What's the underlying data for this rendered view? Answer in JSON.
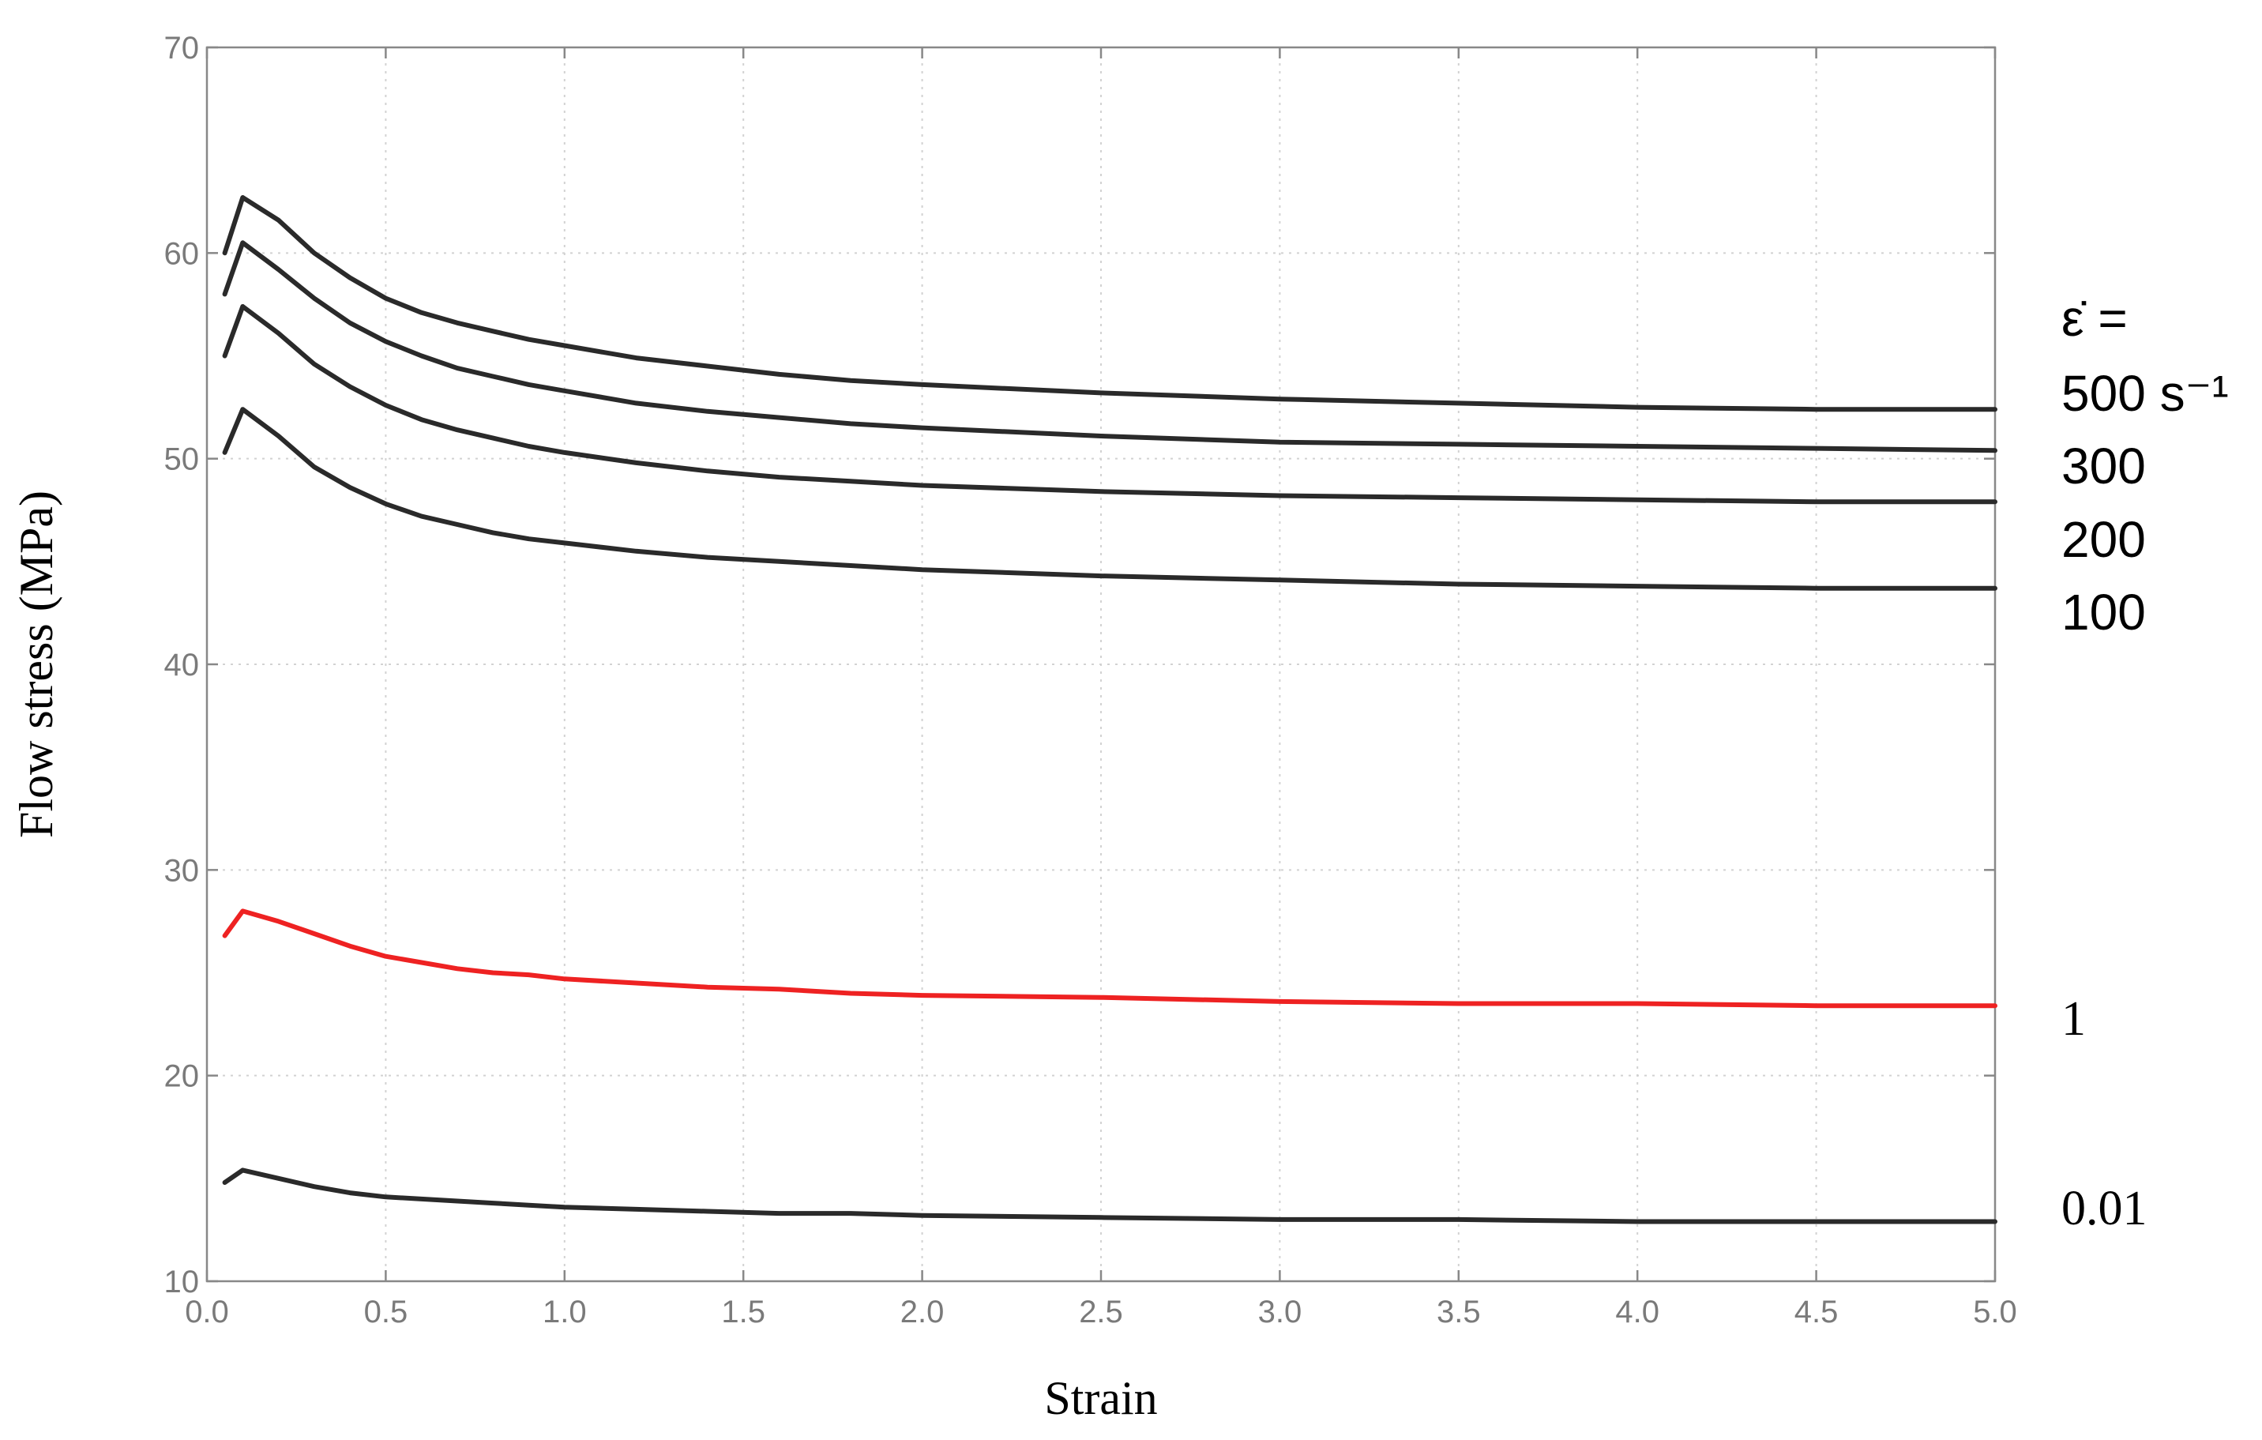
{
  "chart_data": {
    "type": "line",
    "title": "",
    "xlabel": "Strain",
    "ylabel": "Flow stress (MPa)",
    "xlim": [
      0.0,
      5.0
    ],
    "ylim": [
      10,
      70
    ],
    "x_ticks": [
      "0.0",
      "0.5",
      "1.0",
      "1.5",
      "2.0",
      "2.5",
      "3.0",
      "3.5",
      "4.0",
      "4.5",
      "5.0"
    ],
    "y_ticks": [
      "10",
      "20",
      "30",
      "40",
      "50",
      "60",
      "70"
    ],
    "grid": true,
    "legend_title": "ε̇ =",
    "x": [
      0.05,
      0.1,
      0.2,
      0.3,
      0.4,
      0.5,
      0.6,
      0.7,
      0.8,
      0.9,
      1.0,
      1.2,
      1.4,
      1.6,
      1.8,
      2.0,
      2.5,
      3.0,
      3.5,
      4.0,
      4.5,
      5.0
    ],
    "series": [
      {
        "name": "500 s⁻¹",
        "color": "#2a2a2a",
        "values": [
          60.0,
          62.7,
          61.6,
          60.0,
          58.8,
          57.8,
          57.1,
          56.6,
          56.2,
          55.8,
          55.5,
          54.9,
          54.5,
          54.1,
          53.8,
          53.6,
          53.2,
          52.9,
          52.7,
          52.5,
          52.4,
          52.4
        ]
      },
      {
        "name": "300",
        "color": "#2a2a2a",
        "values": [
          58.0,
          60.5,
          59.2,
          57.8,
          56.6,
          55.7,
          55.0,
          54.4,
          54.0,
          53.6,
          53.3,
          52.7,
          52.3,
          52.0,
          51.7,
          51.5,
          51.1,
          50.8,
          50.7,
          50.6,
          50.5,
          50.4
        ]
      },
      {
        "name": "200",
        "color": "#2a2a2a",
        "values": [
          55.0,
          57.4,
          56.1,
          54.6,
          53.5,
          52.6,
          51.9,
          51.4,
          51.0,
          50.6,
          50.3,
          49.8,
          49.4,
          49.1,
          48.9,
          48.7,
          48.4,
          48.2,
          48.1,
          48.0,
          47.9,
          47.9
        ]
      },
      {
        "name": "100",
        "color": "#2a2a2a",
        "values": [
          50.3,
          52.4,
          51.1,
          49.6,
          48.6,
          47.8,
          47.2,
          46.8,
          46.4,
          46.1,
          45.9,
          45.5,
          45.2,
          45.0,
          44.8,
          44.6,
          44.3,
          44.1,
          43.9,
          43.8,
          43.7,
          43.7
        ]
      },
      {
        "name": "1",
        "color": "#ee2222",
        "values": [
          26.8,
          28.0,
          27.5,
          26.9,
          26.3,
          25.8,
          25.5,
          25.2,
          25.0,
          24.9,
          24.7,
          24.5,
          24.3,
          24.2,
          24.0,
          23.9,
          23.8,
          23.6,
          23.5,
          23.5,
          23.4,
          23.4
        ]
      },
      {
        "name": "0.01",
        "color": "#2a2a2a",
        "values": [
          14.8,
          15.4,
          15.0,
          14.6,
          14.3,
          14.1,
          14.0,
          13.9,
          13.8,
          13.7,
          13.6,
          13.5,
          13.4,
          13.3,
          13.3,
          13.2,
          13.1,
          13.0,
          13.0,
          12.9,
          12.9,
          12.9
        ]
      }
    ]
  }
}
